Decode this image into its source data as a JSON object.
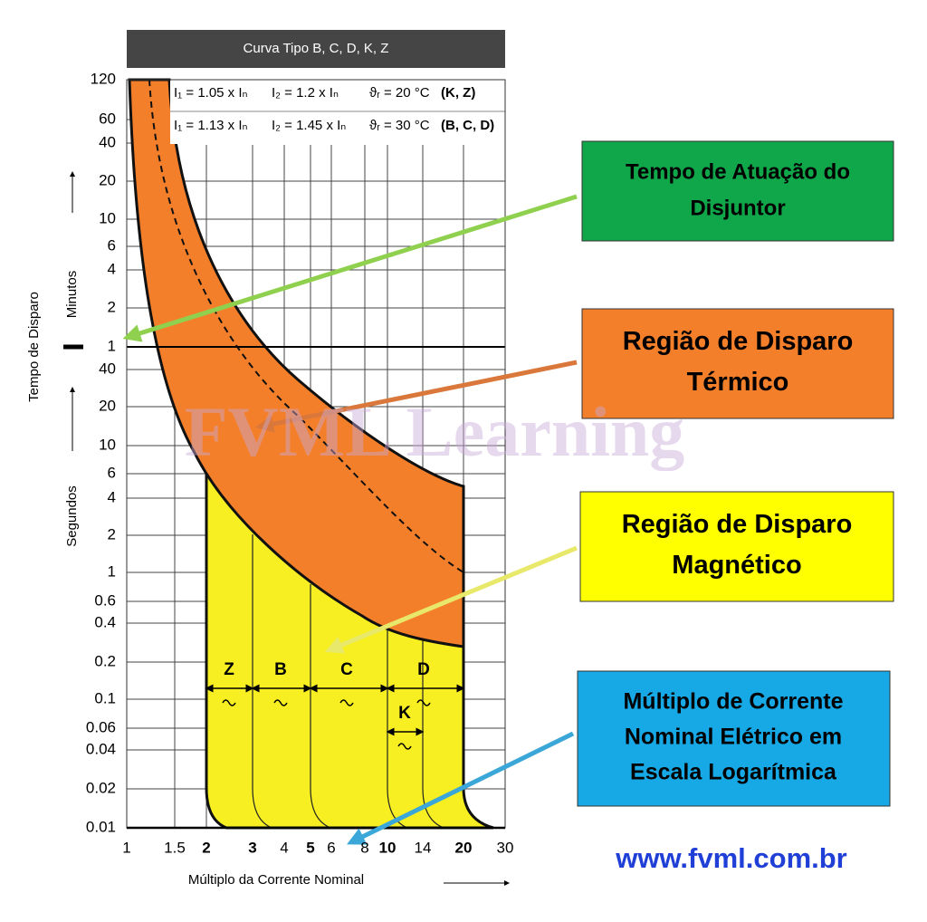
{
  "header": {
    "title": "Curva Tipo B, C, D, K, Z"
  },
  "info": [
    [
      "I₁ = 1.05 x Iₙ",
      "I₂ = 1.2 x Iₙ",
      "ϑᵣ = 20 °C",
      "(K, Z)"
    ],
    [
      "I₁ = 1.13 x Iₙ",
      "I₂ = 1.45 x Iₙ",
      "ϑᵣ = 30 °C",
      "(B, C, D)"
    ]
  ],
  "y_axis": {
    "label": "Tempo de Disparo",
    "minutes_label": "Minutos",
    "seconds_label": "Segundos",
    "minute_ticks": [
      "120",
      "60",
      "40",
      "20",
      "10",
      "6",
      "4",
      "2",
      "1"
    ],
    "second_ticks": [
      "40",
      "20",
      "10",
      "6",
      "4",
      "2",
      "1",
      "0.6",
      "0.4",
      "0.2",
      "0.1",
      "0.06",
      "0.04",
      "0.02",
      "0.01"
    ]
  },
  "x_axis": {
    "label": "Múltiplo da Corrente Nominal",
    "ticks": [
      "1",
      "1.5",
      "2",
      "3",
      "4",
      "5",
      "6",
      "8",
      "10",
      "14",
      "20",
      "30"
    ]
  },
  "zones": [
    "Z",
    "B",
    "C",
    "D",
    "K"
  ],
  "watermark": "FVML Learning",
  "callouts": [
    {
      "lines": [
        "Tempo de Atuação do",
        "Disjuntor"
      ]
    },
    {
      "lines": [
        "Região de Disparo",
        "Térmico"
      ]
    },
    {
      "lines": [
        "Região de Disparo",
        "Magnético"
      ]
    },
    {
      "lines": [
        "Múltiplo de Corrente",
        "Nominal Elétrico em",
        "Escala Logarítmica"
      ]
    }
  ],
  "url": "www.fvml.com.br"
}
